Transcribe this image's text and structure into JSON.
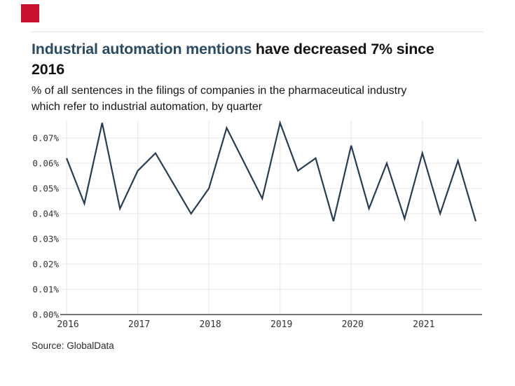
{
  "header": {
    "title_highlight": "Industrial automation mentions",
    "title_rest_line1": " have decreased 7% since",
    "title_line2": "2016",
    "subtitle_line1": "% of all sentences in the filings of companies in the pharmaceutical industry",
    "subtitle_line2": "which refer to industrial automation, by quarter"
  },
  "footer": {
    "source": "Source: GlobalData"
  },
  "brand": {
    "logo_color": "#c8102e"
  },
  "colors": {
    "title_highlight": "#2b4a63",
    "text": "#131313",
    "line": "#273d55",
    "grid": "#e7e7e7",
    "axis": "#474747",
    "tick_text": "#333333"
  },
  "chart_data": {
    "type": "line",
    "title": "Industrial automation mentions have decreased 7% since 2016",
    "subtitle": "% of all sentences in the filings of companies in the pharmaceutical industry which refer to industrial automation, by quarter",
    "categories": [
      "2016 Q1",
      "2016 Q2",
      "2016 Q3",
      "2016 Q4",
      "2017 Q1",
      "2017 Q2",
      "2017 Q3",
      "2017 Q4",
      "2018 Q1",
      "2018 Q2",
      "2018 Q3",
      "2018 Q4",
      "2019 Q1",
      "2019 Q2",
      "2019 Q3",
      "2019 Q4",
      "2020 Q1",
      "2020 Q2",
      "2020 Q3",
      "2020 Q4",
      "2021 Q1",
      "2021 Q2",
      "2021 Q3",
      "2021 Q4"
    ],
    "values": [
      0.062,
      0.044,
      0.076,
      0.042,
      0.057,
      0.064,
      0.052,
      0.04,
      0.05,
      0.074,
      0.06,
      0.046,
      0.076,
      0.057,
      0.062,
      0.037,
      0.067,
      0.042,
      0.06,
      0.038,
      0.064,
      0.04,
      0.061,
      0.037
    ],
    "unit": "%",
    "xlabel": "",
    "ylabel": "",
    "ylim": [
      0.0,
      0.07
    ],
    "y_tick_step": 0.01,
    "y_tick_labels": [
      "0.00%",
      "0.01%",
      "0.02%",
      "0.03%",
      "0.04%",
      "0.05%",
      "0.06%",
      "0.07%"
    ],
    "x_tick_labels": [
      "2016",
      "2017",
      "2018",
      "2019",
      "2020",
      "2021"
    ],
    "grid": true,
    "legend": false
  }
}
